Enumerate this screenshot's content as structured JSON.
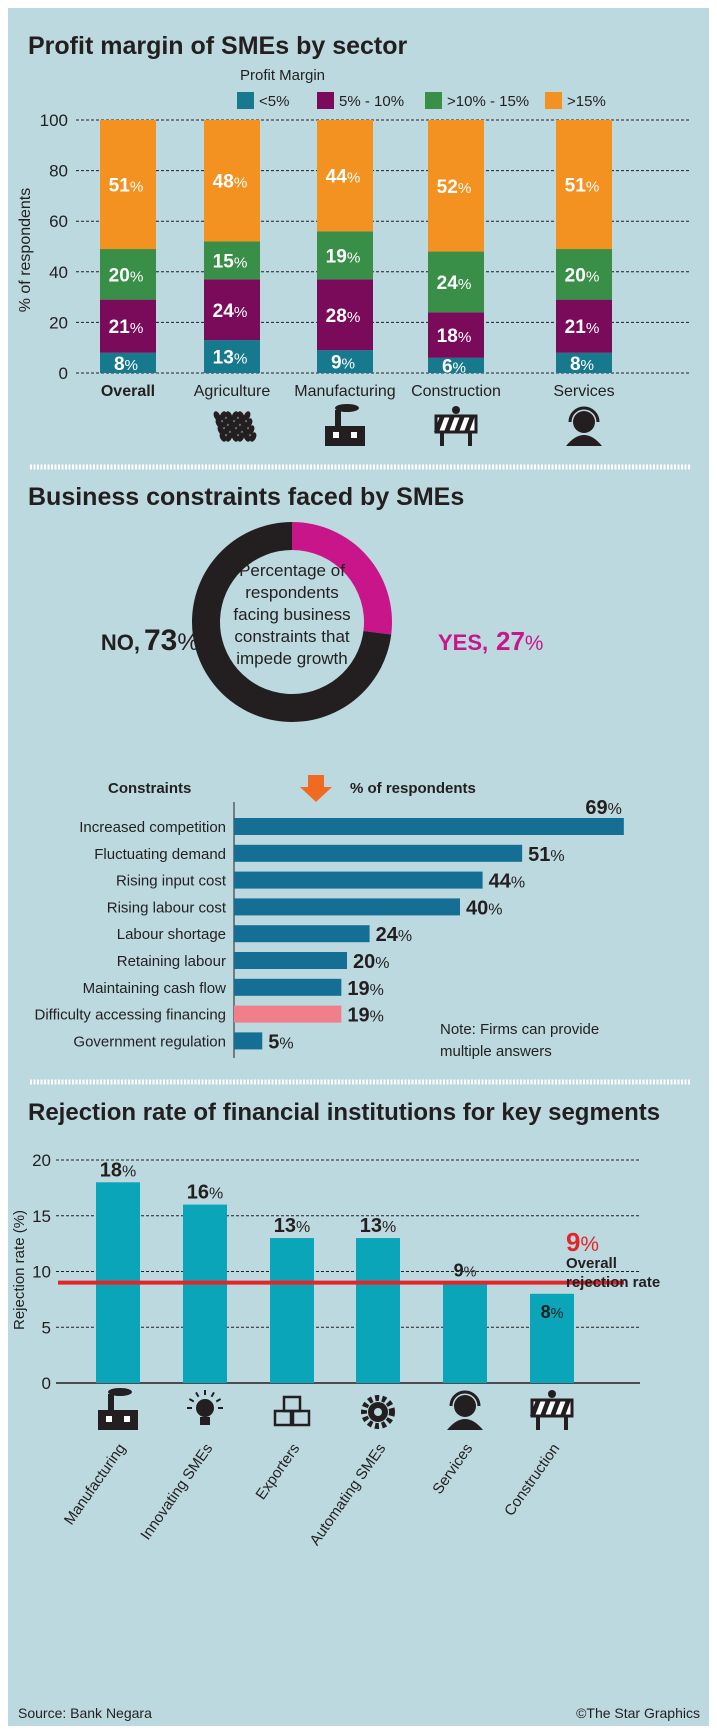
{
  "colors": {
    "background": "#bcd9df",
    "lt5": "#16798d",
    "5to10": "#7a0a5a",
    "10to15": "#3a8f48",
    "gt15": "#f39220",
    "bar": "#156f95",
    "highlight": "#f17f8a",
    "donut_no": "#231f20",
    "donut_yes": "#c8168a",
    "rejection_bar": "#0aa5b9",
    "overall_line": "#e3252a",
    "arrow": "#f06a22"
  },
  "source": "Source: Bank Negara",
  "credit": "©The Star Graphics",
  "chart_data": [
    {
      "type": "bar",
      "stacked": true,
      "title": "Profit margin of SMEs by sector",
      "legend_title": "Profit Margin",
      "legend_placement": "top-right",
      "ylabel": "% of respondents",
      "ylim": [
        0,
        100
      ],
      "yticks": [
        0,
        20,
        40,
        60,
        80,
        100
      ],
      "grid": true,
      "categories": [
        "Overall",
        "Agriculture",
        "Manufacturing",
        "Construction",
        "Services"
      ],
      "category_icons": [
        "",
        "wheat-icon",
        "factory-icon",
        "roadblock-icon",
        "person-headset-icon"
      ],
      "series": [
        {
          "name": "<5%",
          "values": [
            8,
            13,
            9,
            6,
            8
          ]
        },
        {
          "name": "5% - 10%",
          "values": [
            21,
            24,
            28,
            18,
            21
          ]
        },
        {
          "name": ">10% - 15%",
          "values": [
            20,
            15,
            19,
            24,
            20
          ]
        },
        {
          "name": ">15%",
          "values": [
            51,
            48,
            44,
            52,
            51
          ]
        }
      ]
    },
    {
      "type": "pie",
      "donut": true,
      "title": "Business constraints faced by SMEs",
      "center_text": [
        "Percentage of",
        "respondents",
        "facing business",
        "constraints that",
        "impede growth"
      ],
      "slices": [
        {
          "label": "NO,",
          "value": 73
        },
        {
          "label": "YES,",
          "value": 27
        }
      ]
    },
    {
      "type": "bar",
      "orientation": "horizontal",
      "category_header": "Constraints",
      "value_header": "% of respondents",
      "categories": [
        "Increased competition",
        "Fluctuating demand",
        "Rising input cost",
        "Rising labour cost",
        "Labour shortage",
        "Retaining labour",
        "Maintaining cash flow",
        "Difficulty accessing financing",
        "Government regulation"
      ],
      "values": [
        69,
        51,
        44,
        40,
        24,
        20,
        19,
        19,
        5
      ],
      "highlighted": "Difficulty accessing financing",
      "note": [
        "Note: Firms can provide",
        "multiple answers"
      ]
    },
    {
      "type": "bar",
      "title": "Rejection rate of financial institutions for key segments",
      "ylabel": "Rejection rate (%)",
      "ylim": [
        0,
        20
      ],
      "yticks": [
        0,
        5,
        10,
        15,
        20
      ],
      "grid": true,
      "categories": [
        "Manufacturing",
        "Innovating SMEs",
        "Exporters",
        "Automating SMEs",
        "Services",
        "Construction"
      ],
      "category_icons": [
        "factory-icon",
        "lightbulb-icon",
        "boxes-icon",
        "gear-icon",
        "person-headset-icon",
        "roadblock-icon"
      ],
      "values": [
        18,
        16,
        13,
        13,
        9,
        8
      ],
      "reference_line": {
        "value": 9,
        "label": [
          "Overall",
          "rejection rate"
        ]
      }
    }
  ]
}
